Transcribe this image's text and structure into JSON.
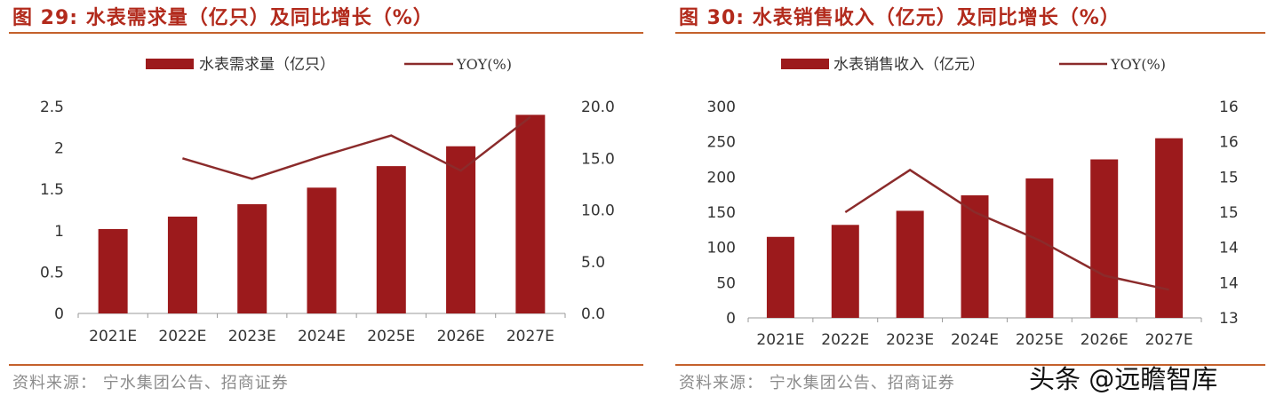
{
  "colors": {
    "bar": "#9c1a1c",
    "line": "#8b2b2b",
    "accent": "#b22a1c",
    "rule": "#c4612c",
    "source": "#8c8c8c",
    "tick": "#333333"
  },
  "figures": [
    {
      "title": "图 29:  水表需求量（亿只）及同比增长（%）",
      "source": "资料来源：  宁水集团公告、招商证券",
      "legend_bar": "水表需求量（亿只）",
      "legend_line": "YOY(%)"
    },
    {
      "title": "图 30:  水表销售收入（亿元）及同比增长（%）",
      "source": "资料来源：  宁水集团公告、招商证券",
      "legend_bar": "水表销售收入（亿元）",
      "legend_line": "YOY(%)"
    }
  ],
  "watermark": "头条 @远瞻智库",
  "chart_data": [
    {
      "type": "bar",
      "categories": [
        "2021E",
        "2022E",
        "2023E",
        "2024E",
        "2025E",
        "2026E",
        "2027E"
      ],
      "series": [
        {
          "name": "水表需求量（亿只）",
          "type": "bar",
          "axis": "left",
          "values": [
            1.02,
            1.17,
            1.32,
            1.52,
            1.78,
            2.02,
            2.4
          ]
        },
        {
          "name": "YOY(%)",
          "type": "line",
          "axis": "right",
          "values": [
            null,
            15.0,
            13.0,
            15.2,
            17.2,
            13.8,
            19.0
          ]
        }
      ],
      "y_left": {
        "ylim": [
          0,
          2.5
        ],
        "ticks": [
          0,
          0.5,
          1,
          1.5,
          2,
          2.5
        ],
        "tick_labels": [
          "0",
          "0.5",
          "1",
          "1.5",
          "2",
          "2.5"
        ]
      },
      "y_right": {
        "ylim": [
          0,
          20
        ],
        "ticks": [
          0,
          5,
          10,
          15,
          20
        ],
        "tick_labels": [
          "0.0",
          "5.0",
          "10.0",
          "15.0",
          "20.0"
        ]
      },
      "legend_position": "top-center",
      "grid": false
    },
    {
      "type": "bar",
      "categories": [
        "2021E",
        "2022E",
        "2023E",
        "2024E",
        "2025E",
        "2026E",
        "2027E"
      ],
      "series": [
        {
          "name": "水表销售收入（亿元）",
          "type": "bar",
          "axis": "left",
          "values": [
            115,
            132,
            152,
            174,
            198,
            225,
            255
          ]
        },
        {
          "name": "YOY(%)",
          "type": "line",
          "axis": "right",
          "values": [
            null,
            14.5,
            15.1,
            14.5,
            14.1,
            13.6,
            13.4
          ]
        }
      ],
      "y_left": {
        "ylim": [
          0,
          300
        ],
        "ticks": [
          0,
          50,
          100,
          150,
          200,
          250,
          300
        ],
        "tick_labels": [
          "0",
          "50",
          "100",
          "150",
          "200",
          "250",
          "300"
        ]
      },
      "y_right": {
        "ylim": [
          13,
          16
        ],
        "ticks": [
          13,
          13.5,
          14,
          14.5,
          15,
          15.5,
          16
        ],
        "tick_labels": [
          "13",
          "14",
          "14",
          "15",
          "15",
          "16",
          "16"
        ]
      },
      "legend_position": "top-center",
      "grid": false
    }
  ]
}
